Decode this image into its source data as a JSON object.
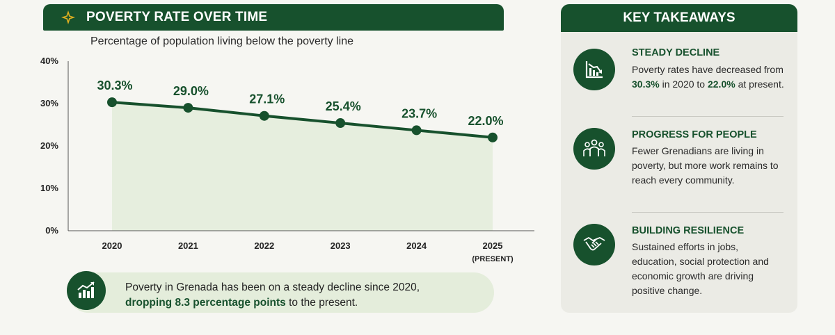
{
  "header": {
    "title": "POVERTY RATE OVER TIME",
    "subtitle": "Percentage of population living below the poverty line",
    "icon": "star-icon"
  },
  "chart_data": {
    "type": "area",
    "title": "POVERTY RATE OVER TIME",
    "subtitle": "Percentage of population living below the poverty line",
    "categories": [
      "2020",
      "2021",
      "2022",
      "2023",
      "2024",
      "2025"
    ],
    "category_sublabels": [
      "",
      "",
      "",
      "",
      "",
      "(PRESENT)"
    ],
    "series": [
      {
        "values": [
          30.3,
          29.0,
          27.1,
          25.4,
          23.7,
          22.0
        ],
        "labels": [
          "30.3%",
          "29.0%",
          "27.1%",
          "25.4%",
          "23.7%",
          "22.0%"
        ]
      }
    ],
    "y_ticks": [
      "0%",
      "10%",
      "20%",
      "30%",
      "40%"
    ],
    "ylim": [
      0,
      40
    ],
    "xlabel": "",
    "ylabel": "",
    "grid": false,
    "line_color": "#17512d",
    "fill_color": "#e4eddb"
  },
  "summary": {
    "icon": "growth-chart-icon",
    "line1": "Poverty in Grenada has been on a steady decline since 2020,",
    "line2_bold": "dropping 8.3 percentage points",
    "line2_rest": " to the present."
  },
  "takeaways": {
    "header": "KEY TAKEAWAYS",
    "items": [
      {
        "icon": "declining-chart-icon",
        "title": "STEADY DECLINE",
        "body_1": "Poverty rates have decreased from ",
        "body_2": "30.3%",
        "body_3": " in 2020 to ",
        "body_4": "22.0%",
        "body_5": " at present."
      },
      {
        "icon": "people-group-icon",
        "title": "PROGRESS FOR PEOPLE",
        "body": "Fewer Grenadians are living in poverty, but more work remains to reach every community."
      },
      {
        "icon": "handshake-icon",
        "title": "BUILDING RESILIENCE",
        "body": "Sustained efforts in jobs, education, social protection and economic growth are driving positive change."
      }
    ]
  },
  "colors": {
    "primary": "#17512d",
    "gold": "#e0b020",
    "highlight_bg": "#e4eddb",
    "panel_bg": "#ebebe5"
  }
}
